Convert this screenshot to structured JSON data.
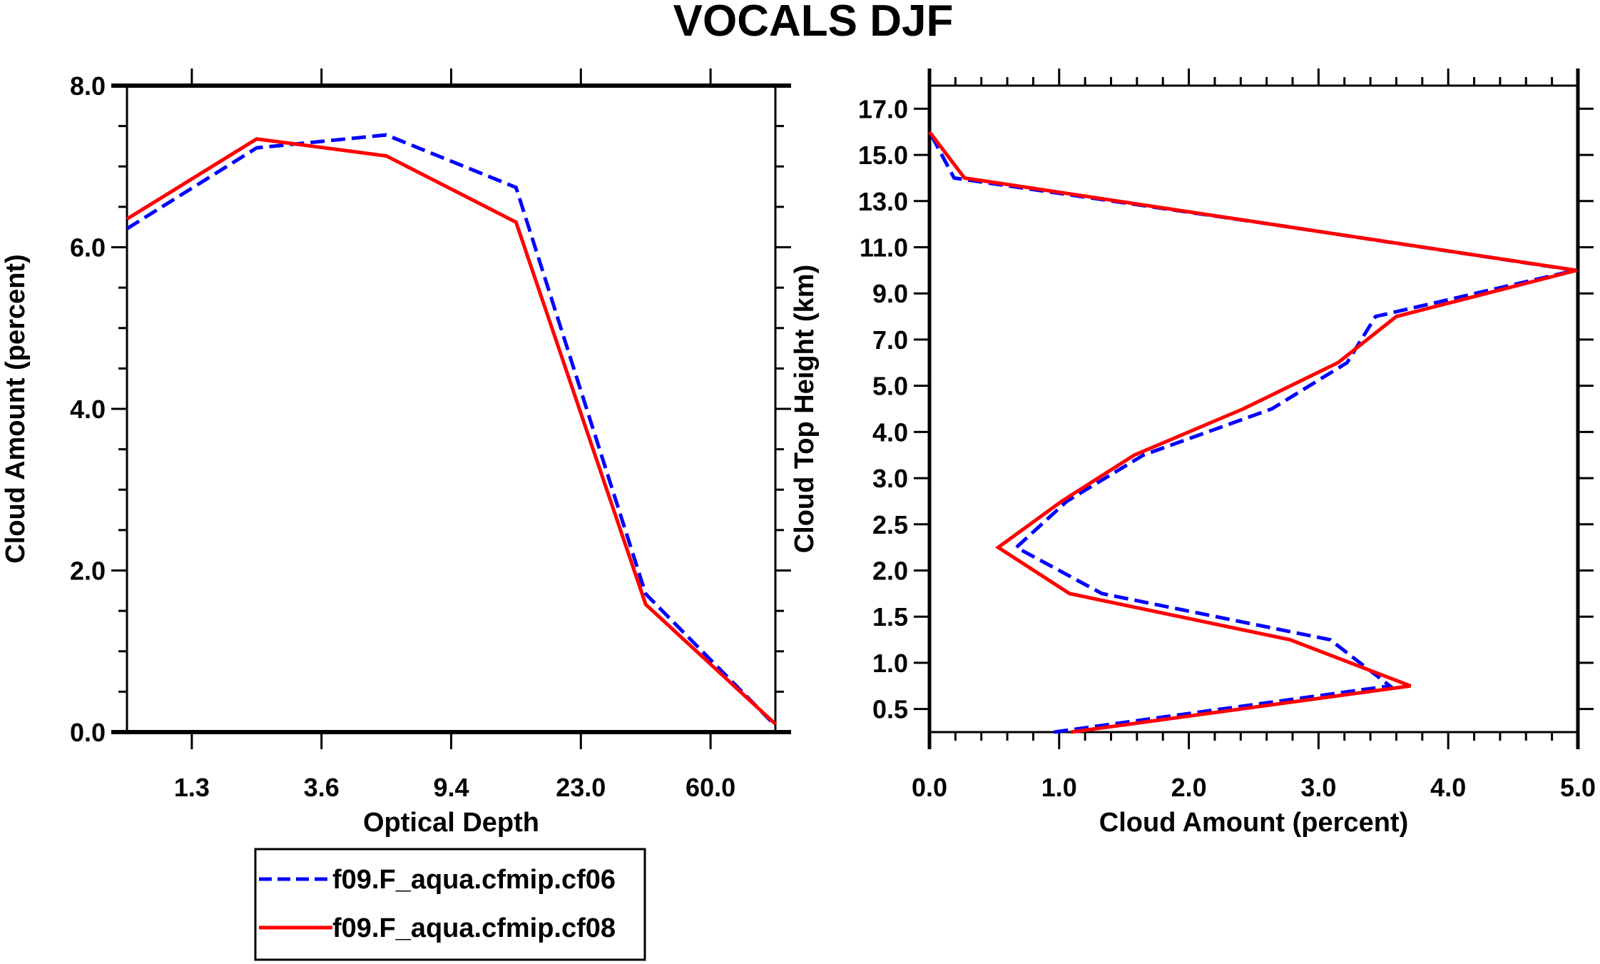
{
  "title": "VOCALS DJF",
  "colors": {
    "series_cf06": "#0000ff",
    "series_cf08": "#ff0000",
    "axes": "#000000"
  },
  "legend": {
    "placement": "bottom-left",
    "items": [
      {
        "label": "f09.F_aqua.cfmip.cf06",
        "color": "#0000ff",
        "style": "dashed"
      },
      {
        "label": "f09.F_aqua.cfmip.cf08",
        "color": "#ff0000",
        "style": "solid"
      }
    ]
  },
  "chart_data": [
    {
      "type": "line",
      "xlabel": "Optical Depth",
      "ylabel": "Cloud Amount (percent)",
      "x_index": [
        0,
        1,
        2,
        3,
        4,
        5
      ],
      "x_tick_labels": [
        "1.3",
        "3.6",
        "9.4",
        "23.0",
        "60.0"
      ],
      "x_tick_index": [
        0.5,
        1.5,
        2.5,
        3.5,
        4.5
      ],
      "xlim": [
        0,
        5
      ],
      "ylim": [
        0,
        8
      ],
      "y_ticks": [
        "0.0",
        "2.0",
        "4.0",
        "6.0",
        "8.0"
      ],
      "y_tick_values": [
        0,
        2,
        4,
        6,
        8
      ],
      "grid": false,
      "series": [
        {
          "name": "f09.F_aqua.cfmip.cf06",
          "values": [
            6.23,
            7.23,
            7.39,
            6.74,
            1.71,
            0.08
          ]
        },
        {
          "name": "f09.F_aqua.cfmip.cf08",
          "values": [
            6.35,
            7.34,
            7.13,
            6.31,
            1.58,
            0.1
          ]
        }
      ]
    },
    {
      "type": "line",
      "xlabel": "Cloud Amount (percent)",
      "ylabel": "Cloud Top Height (km)",
      "xlim": [
        0,
        5
      ],
      "x_ticks": [
        "0.0",
        "1.0",
        "2.0",
        "3.0",
        "4.0",
        "5.0"
      ],
      "x_tick_values": [
        0,
        1,
        2,
        3,
        4,
        5
      ],
      "y_tick_labels": [
        "0.5",
        "1.0",
        "1.5",
        "2.0",
        "2.5",
        "3.0",
        "4.0",
        "5.0",
        "7.0",
        "9.0",
        "11.0",
        "13.0",
        "15.0",
        "17.0"
      ],
      "y_tick_index": [
        1,
        2,
        3,
        4,
        5,
        6,
        7,
        8,
        9,
        10,
        11,
        12,
        13,
        14
      ],
      "y_index_range": [
        0.5,
        14.5
      ],
      "y_index": [
        0.5,
        1.5,
        2.5,
        3.5,
        4.5,
        5.5,
        6.5,
        7.5,
        8.5,
        9.5,
        10.5,
        11.5,
        12.5,
        13.5
      ],
      "grid": false,
      "series": [
        {
          "name": "f09.F_aqua.cfmip.cf06",
          "values": [
            0.96,
            3.55,
            3.09,
            1.33,
            0.67,
            1.06,
            1.65,
            2.64,
            3.22,
            3.44,
            4.98,
            2.63,
            0.19,
            0.0
          ]
        },
        {
          "name": "f09.F_aqua.cfmip.cf08",
          "values": [
            1.09,
            3.71,
            2.78,
            1.08,
            0.53,
            1.02,
            1.58,
            2.42,
            3.15,
            3.6,
            4.99,
            2.63,
            0.27,
            0.0
          ]
        }
      ]
    }
  ]
}
